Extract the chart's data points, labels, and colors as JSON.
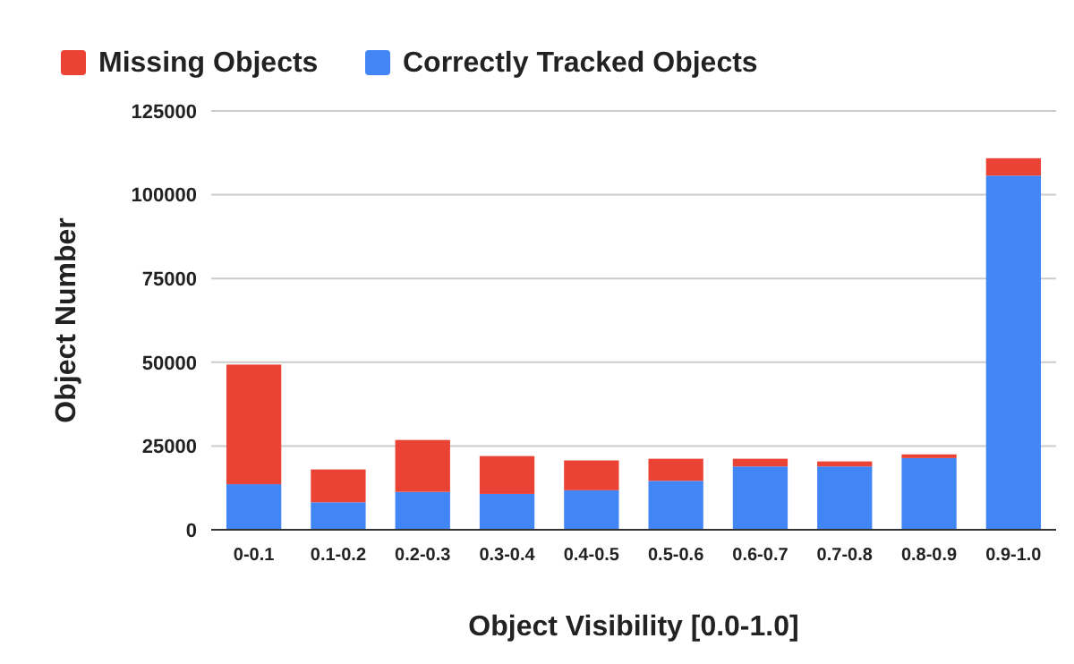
{
  "chart_data": {
    "type": "bar",
    "stacked": true,
    "xlabel": "Object Visibility [0.0-1.0]",
    "ylabel": "Object Number",
    "categories": [
      "0-0.1",
      "0.1-0.2",
      "0.2-0.3",
      "0.3-0.4",
      "0.4-0.5",
      "0.5-0.6",
      "0.6-0.7",
      "0.7-0.8",
      "0.8-0.9",
      "0.9-1.0"
    ],
    "series": [
      {
        "name": "Correctly Tracked Objects",
        "color": "#4285f4",
        "values": [
          13600,
          8200,
          11300,
          10700,
          11800,
          14600,
          18900,
          18900,
          21400,
          105700
        ]
      },
      {
        "name": "Missing Objects",
        "color": "#ea4335",
        "values": [
          35700,
          9800,
          15500,
          11300,
          8900,
          6600,
          2300,
          1500,
          1100,
          5200
        ]
      }
    ],
    "ylim": [
      0,
      125000
    ],
    "yticks": [
      0,
      25000,
      50000,
      75000,
      100000,
      125000
    ],
    "grid": "y",
    "legend": "top left"
  }
}
